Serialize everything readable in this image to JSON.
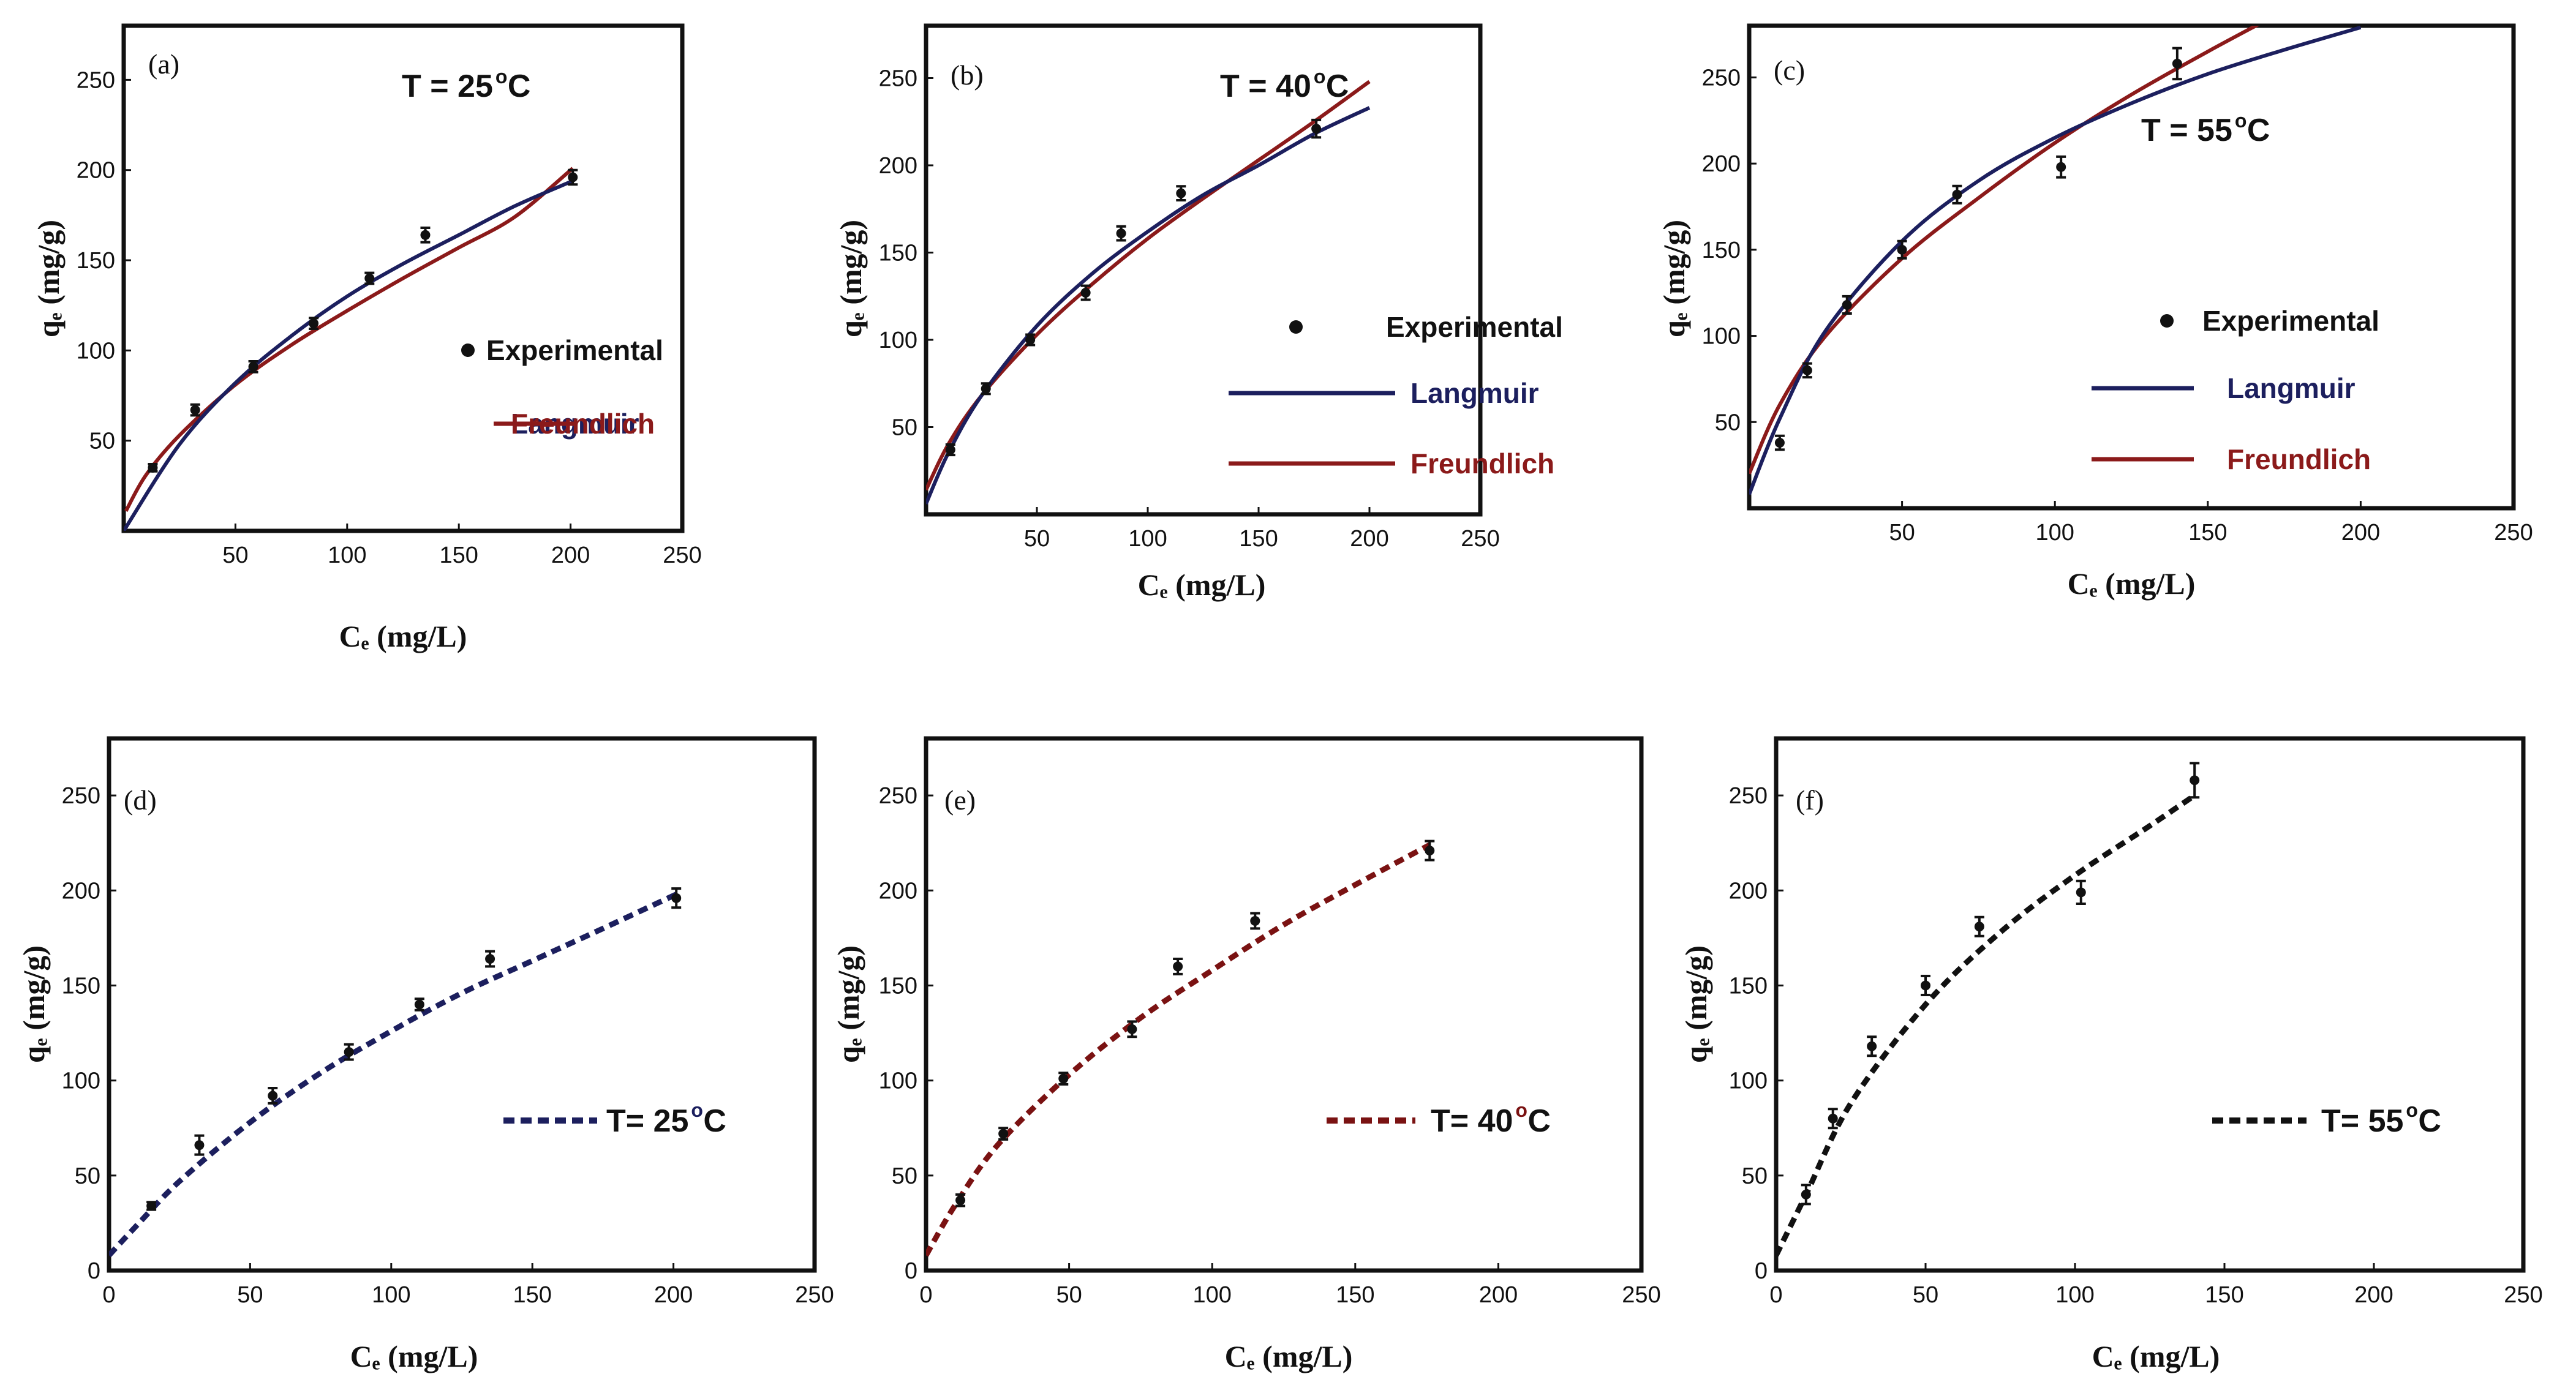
{
  "figure_title": "Adsorption isotherms of qe versus Ce at three temperatures",
  "colors": {
    "experimental": "#111111",
    "langmuir": "#1c1f5e",
    "freundlich": "#8b1a1a",
    "fit_25": "#1c1f5e",
    "fit_40": "#7a1212",
    "fit_55": "#111111",
    "axis": "#111111"
  },
  "chart_data": [
    {
      "id": "a",
      "type": "line",
      "panel_label": "(a)",
      "temperature_label": "T = 25",
      "xlabel": "Cₑ (mg/L)",
      "ylabel": "qₑ (mg/g)",
      "xlim": [
        0,
        250
      ],
      "ylim": [
        0,
        280
      ],
      "xticks": [
        50,
        100,
        150,
        200,
        250
      ],
      "yticks": [
        50,
        100,
        150,
        200,
        250
      ],
      "legend": {
        "experimental": "Experimental",
        "langmuir": "Langmuir",
        "freundlich": "Freundlich"
      },
      "experimental": {
        "x": [
          13,
          32,
          58,
          85,
          110,
          135,
          201
        ],
        "y": [
          35,
          67,
          91,
          115,
          140,
          164,
          196
        ],
        "err": [
          2,
          3,
          3,
          3,
          3,
          4,
          4
        ]
      },
      "langmuir": {
        "x": [
          0,
          25,
          50,
          75,
          100,
          125,
          150,
          175,
          201
        ],
        "y": [
          0,
          48,
          82,
          108,
          130,
          148,
          164,
          180,
          194
        ]
      },
      "freundlich": {
        "x": [
          1,
          10,
          25,
          50,
          75,
          100,
          125,
          150,
          175,
          201
        ],
        "y": [
          11,
          31,
          53,
          81,
          103,
          122,
          140,
          157,
          174,
          201
        ]
      }
    },
    {
      "id": "b",
      "type": "line",
      "panel_label": "(b)",
      "temperature_label": "T = 40",
      "xlabel": "Cₑ (mg/L)",
      "ylabel": "qₑ (mg/g)",
      "xlim": [
        0,
        250
      ],
      "ylim": [
        0,
        280
      ],
      "xticks": [
        50,
        100,
        150,
        200,
        250
      ],
      "yticks": [
        50,
        100,
        150,
        200,
        250
      ],
      "legend": {
        "experimental": "Experimental",
        "langmuir": "Langmuir",
        "freundlich": "Freundlich"
      },
      "experimental": {
        "x": [
          11,
          27,
          47,
          72,
          88,
          115,
          176
        ],
        "y": [
          37,
          72,
          100,
          127,
          161,
          184,
          221
        ],
        "err": [
          3,
          3,
          3,
          4,
          4,
          4,
          5
        ]
      },
      "langmuir": {
        "x": [
          0,
          10,
          25,
          50,
          75,
          100,
          125,
          150,
          175,
          200
        ],
        "y": [
          6,
          35,
          68,
          108,
          138,
          162,
          183,
          200,
          218,
          233
        ]
      },
      "freundlich": {
        "x": [
          0,
          10,
          25,
          50,
          75,
          100,
          125,
          150,
          175,
          200
        ],
        "y": [
          14,
          40,
          68,
          103,
          132,
          158,
          181,
          203,
          225,
          248
        ]
      }
    },
    {
      "id": "c",
      "type": "line",
      "panel_label": "(c)",
      "temperature_label": "T = 55",
      "xlabel": "Cₑ (mg/L)",
      "ylabel": "qₑ (mg/g)",
      "xlim": [
        0,
        250
      ],
      "ylim": [
        0,
        280
      ],
      "xticks": [
        50,
        100,
        150,
        200,
        250
      ],
      "yticks": [
        50,
        100,
        150,
        200,
        250
      ],
      "legend": {
        "experimental": "Experimental",
        "langmuir": "Langmuir",
        "freundlich": "Freundlich"
      },
      "experimental": {
        "x": [
          10,
          19,
          32,
          50,
          68,
          102,
          140
        ],
        "y": [
          38,
          80,
          118,
          150,
          182,
          198,
          258
        ],
        "err": [
          4,
          4,
          5,
          5,
          5,
          6,
          9
        ]
      },
      "langmuir": {
        "x": [
          0,
          10,
          25,
          50,
          75,
          100,
          125,
          150,
          175,
          200
        ],
        "y": [
          8,
          52,
          103,
          155,
          190,
          215,
          235,
          252,
          266,
          279
        ]
      },
      "freundlich": {
        "x": [
          0,
          10,
          25,
          50,
          75,
          100,
          125,
          150,
          170
        ],
        "y": [
          20,
          60,
          100,
          145,
          180,
          212,
          240,
          265,
          284
        ]
      }
    },
    {
      "id": "d",
      "type": "line",
      "panel_label": "(d)",
      "temperature_label": "T= 25",
      "xlabel": "Cₑ (mg/L)",
      "ylabel": "qₑ (mg/g)",
      "xlim": [
        0,
        250
      ],
      "ylim": [
        0,
        280
      ],
      "xticks": [
        0,
        50,
        100,
        150,
        200,
        250
      ],
      "yticks": [
        0,
        50,
        100,
        150,
        200,
        250
      ],
      "legend": {
        "fit": "T= 25"
      },
      "experimental": {
        "x": [
          15,
          32,
          58,
          85,
          110,
          135,
          201
        ],
        "y": [
          34,
          66,
          92,
          115,
          140,
          164,
          196
        ],
        "err": [
          2,
          5,
          4,
          4,
          3,
          4,
          5
        ]
      },
      "fit": {
        "x": [
          0,
          10,
          25,
          50,
          75,
          100,
          125,
          150,
          175,
          201
        ],
        "y": [
          8,
          24,
          47,
          78,
          104,
          126,
          146,
          163,
          180,
          198
        ]
      }
    },
    {
      "id": "e",
      "type": "line",
      "panel_label": "(e)",
      "temperature_label": "T= 40",
      "xlabel": "Cₑ (mg/L)",
      "ylabel": "qₑ (mg/g)",
      "xlim": [
        0,
        250
      ],
      "ylim": [
        0,
        280
      ],
      "xticks": [
        0,
        50,
        100,
        150,
        200,
        250
      ],
      "yticks": [
        0,
        50,
        100,
        150,
        200,
        250
      ],
      "legend": {
        "fit": "T= 40"
      },
      "experimental": {
        "x": [
          12,
          27,
          48,
          72,
          88,
          115,
          176
        ],
        "y": [
          37,
          72,
          101,
          127,
          160,
          184,
          221
        ],
        "err": [
          3,
          3,
          3,
          4,
          4,
          4,
          5
        ]
      },
      "fit": {
        "x": [
          0,
          10,
          25,
          50,
          75,
          100,
          125,
          150,
          176
        ],
        "y": [
          8,
          34,
          66,
          103,
          133,
          158,
          182,
          203,
          224
        ]
      }
    },
    {
      "id": "f",
      "type": "line",
      "panel_label": "(f)",
      "temperature_label": "T= 55",
      "xlabel": "Cₑ (mg/L)",
      "ylabel": "qₑ (mg/g)",
      "xlim": [
        0,
        250
      ],
      "ylim": [
        0,
        280
      ],
      "xticks": [
        0,
        50,
        100,
        150,
        200,
        250
      ],
      "yticks": [
        0,
        50,
        100,
        150,
        200,
        250
      ],
      "legend": {
        "fit": "T= 55"
      },
      "experimental": {
        "x": [
          10,
          19,
          32,
          50,
          68,
          102,
          140
        ],
        "y": [
          40,
          80,
          118,
          150,
          181,
          199,
          258
        ],
        "err": [
          5,
          5,
          5,
          5,
          5,
          6,
          9
        ]
      },
      "fit": {
        "x": [
          0,
          10,
          25,
          50,
          75,
          100,
          125,
          140
        ],
        "y": [
          8,
          40,
          88,
          140,
          178,
          208,
          234,
          250
        ]
      }
    }
  ]
}
